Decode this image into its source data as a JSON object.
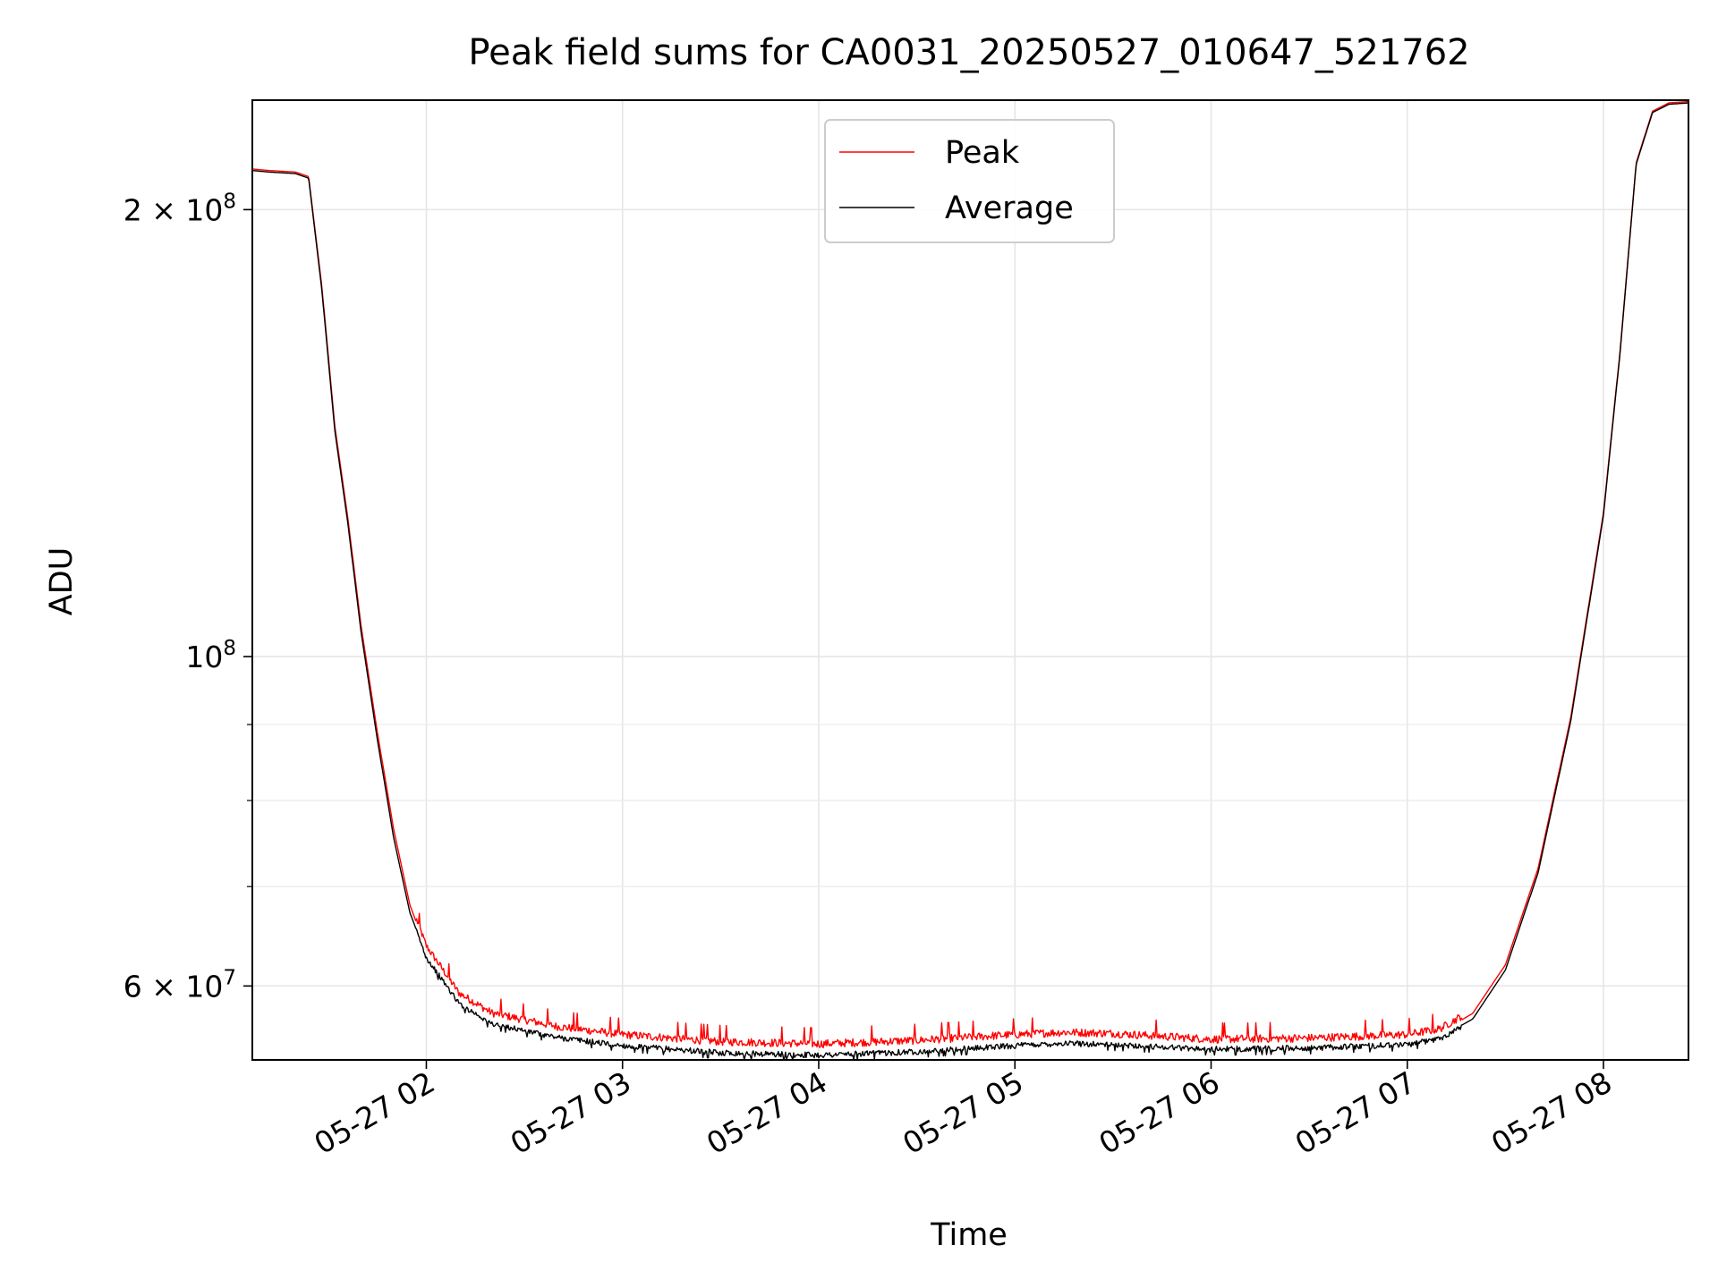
{
  "chart_data": {
    "type": "line",
    "title": "Peak field sums for CA0031_20250527_010647_521762",
    "xlabel": "Time",
    "ylabel": "ADU",
    "x_type": "datetime",
    "x_ticks": [
      "05-27 02",
      "05-27 03",
      "05-27 04",
      "05-27 05",
      "05-27 06",
      "05-27 07",
      "05-27 08"
    ],
    "xlim": [
      "2025-05-27 01:06:47",
      "2025-05-27 08:26:00"
    ],
    "y_scale": "log",
    "ylim": [
      53500000,
      237000000
    ],
    "y_ticks": [
      {
        "value": 60000000,
        "mant": "6",
        "base": "10",
        "exp": "7"
      },
      {
        "value": 100000000,
        "mant": "",
        "base": "10",
        "exp": "8"
      },
      {
        "value": 200000000,
        "mant": "2",
        "base": "10",
        "exp": "8"
      }
    ],
    "grid": true,
    "legend_position": "top-center",
    "series": [
      {
        "name": "Peak",
        "color": "#ff0000",
        "noise_amplitude": 700000,
        "points": [
          [
            "2025-05-27 01:06:47",
            213000000
          ],
          [
            "2025-05-27 01:12:00",
            212500000
          ],
          [
            "2025-05-27 01:20:00",
            212000000
          ],
          [
            "2025-05-27 01:24:00",
            210500000
          ],
          [
            "2025-05-27 01:28:00",
            178000000
          ],
          [
            "2025-05-27 01:32:00",
            143000000
          ],
          [
            "2025-05-27 01:36:00",
            124000000
          ],
          [
            "2025-05-27 01:40:00",
            105000000
          ],
          [
            "2025-05-27 01:45:00",
            89000000
          ],
          [
            "2025-05-27 01:50:00",
            76500000
          ],
          [
            "2025-05-27 01:55:00",
            68000000
          ],
          [
            "2025-05-27 02:00:00",
            63500000
          ],
          [
            "2025-05-27 02:10:00",
            59000000
          ],
          [
            "2025-05-27 02:20:00",
            57200000
          ],
          [
            "2025-05-27 02:40:00",
            56000000
          ],
          [
            "2025-05-27 03:00:00",
            55300000
          ],
          [
            "2025-05-27 03:30:00",
            54700000
          ],
          [
            "2025-05-27 04:00:00",
            54500000
          ],
          [
            "2025-05-27 04:30:00",
            54800000
          ],
          [
            "2025-05-27 05:00:00",
            55300000
          ],
          [
            "2025-05-27 05:15:00",
            55500000
          ],
          [
            "2025-05-27 05:30:00",
            55400000
          ],
          [
            "2025-05-27 06:00:00",
            54900000
          ],
          [
            "2025-05-27 06:30:00",
            55000000
          ],
          [
            "2025-05-27 07:00:00",
            55300000
          ],
          [
            "2025-05-27 07:10:00",
            55800000
          ],
          [
            "2025-05-27 07:20:00",
            57500000
          ],
          [
            "2025-05-27 07:30:00",
            62000000
          ],
          [
            "2025-05-27 07:40:00",
            72000000
          ],
          [
            "2025-05-27 07:50:00",
            91000000
          ],
          [
            "2025-05-27 08:00:00",
            125000000
          ],
          [
            "2025-05-27 08:05:00",
            160000000
          ],
          [
            "2025-05-27 08:10:00",
            215000000
          ],
          [
            "2025-05-27 08:15:00",
            233000000
          ],
          [
            "2025-05-27 08:20:00",
            236000000
          ],
          [
            "2025-05-27 08:26:00",
            236500000
          ]
        ]
      },
      {
        "name": "Average",
        "color": "#000000",
        "noise_amplitude": 500000,
        "points": [
          [
            "2025-05-27 01:06:47",
            212500000
          ],
          [
            "2025-05-27 01:12:00",
            212000000
          ],
          [
            "2025-05-27 01:20:00",
            211500000
          ],
          [
            "2025-05-27 01:24:00",
            210000000
          ],
          [
            "2025-05-27 01:28:00",
            177000000
          ],
          [
            "2025-05-27 01:32:00",
            142000000
          ],
          [
            "2025-05-27 01:36:00",
            123000000
          ],
          [
            "2025-05-27 01:40:00",
            104000000
          ],
          [
            "2025-05-27 01:45:00",
            88000000
          ],
          [
            "2025-05-27 01:50:00",
            75500000
          ],
          [
            "2025-05-27 01:55:00",
            67200000
          ],
          [
            "2025-05-27 02:00:00",
            62800000
          ],
          [
            "2025-05-27 02:10:00",
            58500000
          ],
          [
            "2025-05-27 02:20:00",
            56700000
          ],
          [
            "2025-05-27 02:40:00",
            55500000
          ],
          [
            "2025-05-27 03:00:00",
            54800000
          ],
          [
            "2025-05-27 03:30:00",
            54200000
          ],
          [
            "2025-05-27 04:00:00",
            54000000
          ],
          [
            "2025-05-27 04:30:00",
            54300000
          ],
          [
            "2025-05-27 05:00:00",
            54800000
          ],
          [
            "2025-05-27 05:15:00",
            55000000
          ],
          [
            "2025-05-27 05:30:00",
            54900000
          ],
          [
            "2025-05-27 06:00:00",
            54500000
          ],
          [
            "2025-05-27 06:30:00",
            54600000
          ],
          [
            "2025-05-27 07:00:00",
            54900000
          ],
          [
            "2025-05-27 07:10:00",
            55400000
          ],
          [
            "2025-05-27 07:20:00",
            57000000
          ],
          [
            "2025-05-27 07:30:00",
            61500000
          ],
          [
            "2025-05-27 07:40:00",
            71500000
          ],
          [
            "2025-05-27 07:50:00",
            90500000
          ],
          [
            "2025-05-27 08:00:00",
            124500000
          ],
          [
            "2025-05-27 08:05:00",
            159500000
          ],
          [
            "2025-05-27 08:10:00",
            214500000
          ],
          [
            "2025-05-27 08:15:00",
            232500000
          ],
          [
            "2025-05-27 08:20:00",
            235500000
          ],
          [
            "2025-05-27 08:26:00",
            236000000
          ]
        ]
      }
    ]
  }
}
